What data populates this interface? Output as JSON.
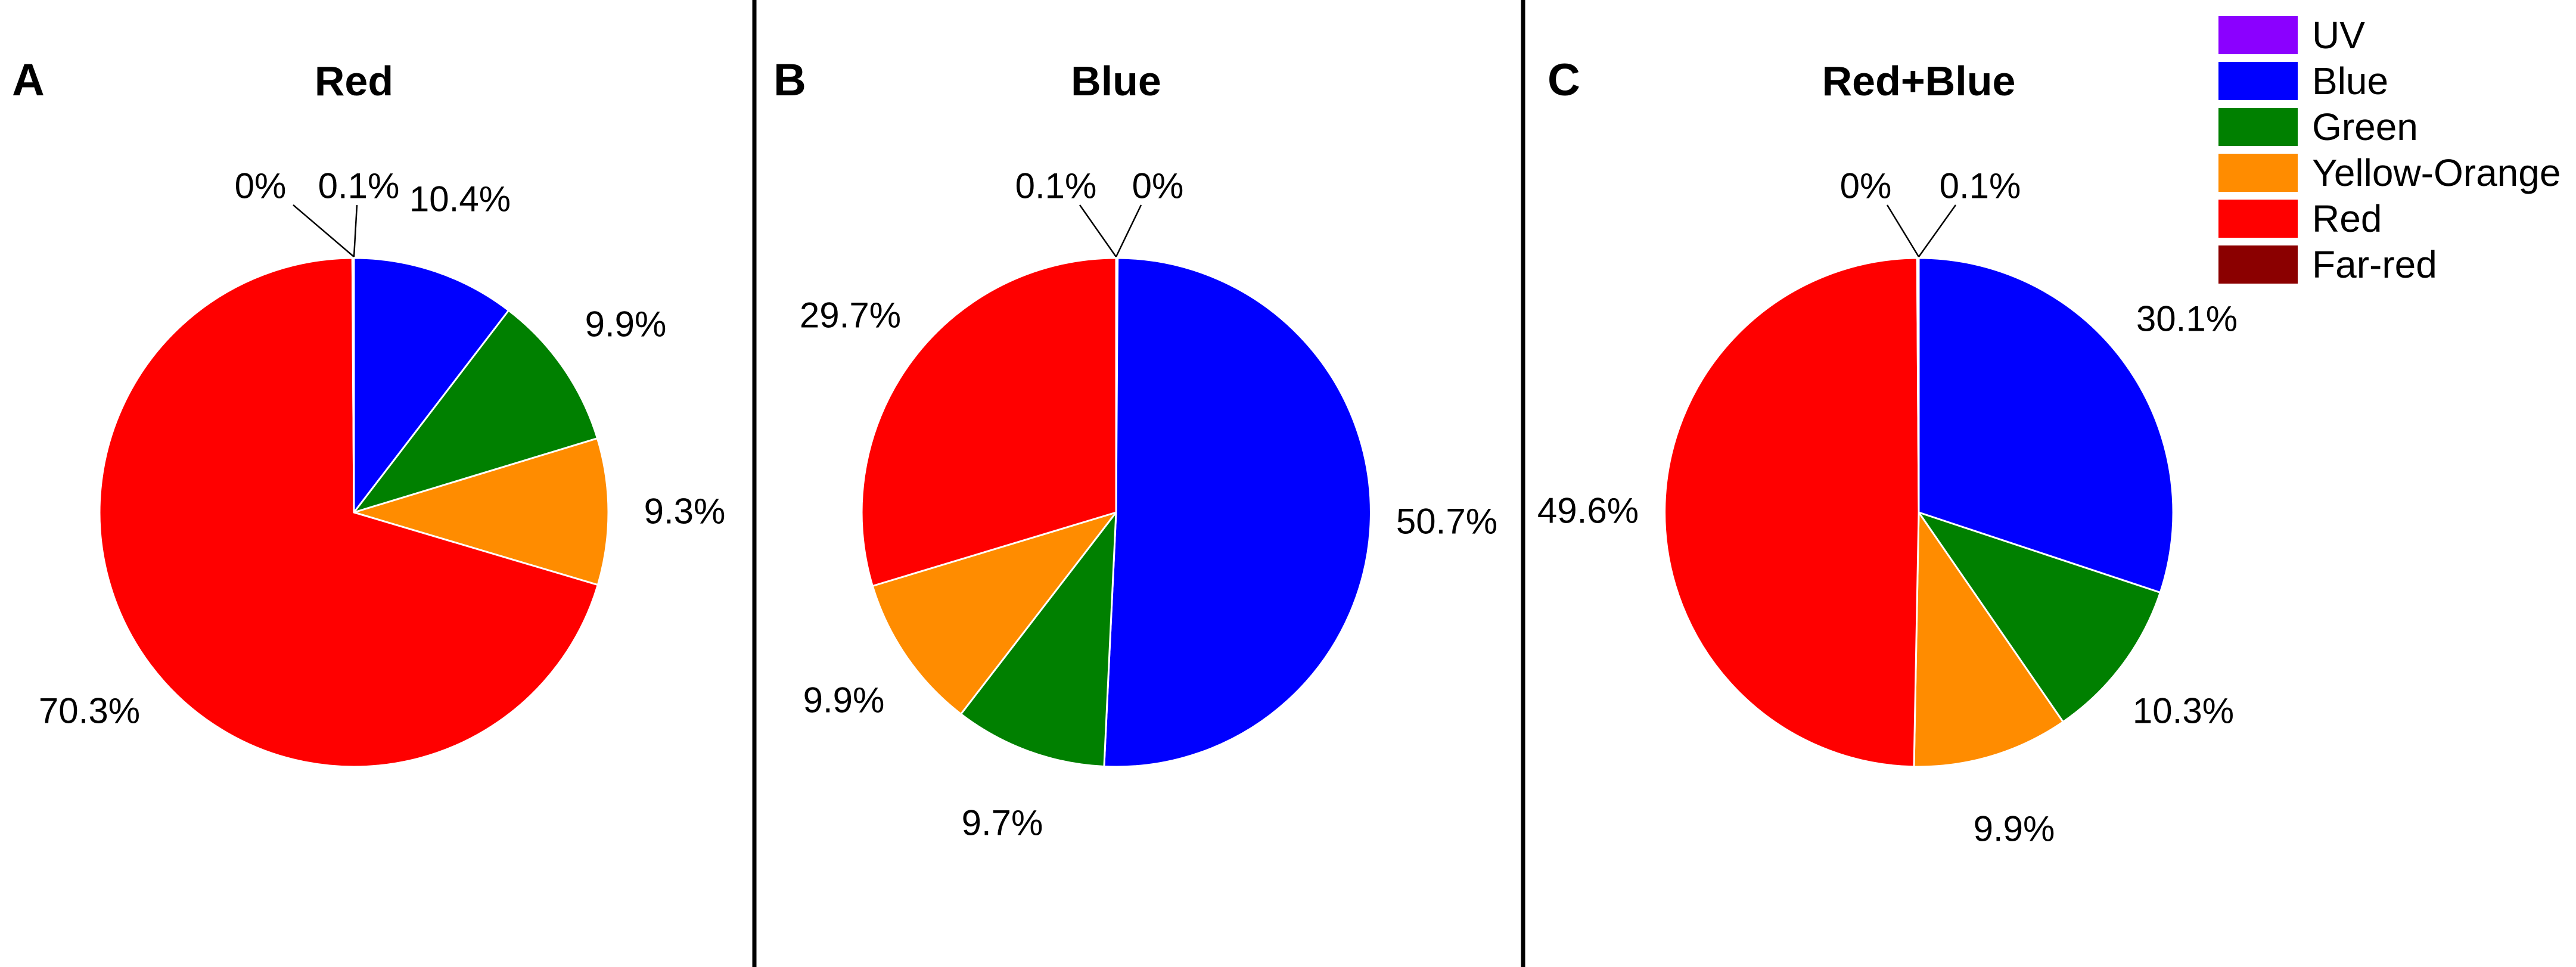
{
  "figure": {
    "background": "#FFFFFF",
    "legend": {
      "position": "top-right",
      "items": [
        {
          "label": "UV",
          "color": "#8B00FF"
        },
        {
          "label": "Blue",
          "color": "#0000FF"
        },
        {
          "label": "Green",
          "color": "#008000"
        },
        {
          "label": "Yellow-Orange",
          "color": "#FF8C00"
        },
        {
          "label": "Red",
          "color": "#FF0000"
        },
        {
          "label": "Far-red",
          "color": "#8B0000"
        }
      ]
    }
  },
  "chart_data": [
    {
      "type": "pie",
      "panel_letter": "A",
      "title": "Red",
      "start_angle": "12-o-clock",
      "direction": "clockwise",
      "categories": [
        "UV",
        "Blue",
        "Green",
        "Yellow-Orange",
        "Red",
        "Far-red"
      ],
      "values": [
        0,
        10.4,
        9.9,
        9.3,
        70.3,
        0.1
      ],
      "labels": [
        "0%",
        "10.4%",
        "9.9%",
        "9.3%",
        "70.3%",
        "0.1%"
      ],
      "colors": [
        "#8B00FF",
        "#0000FF",
        "#008000",
        "#FF8C00",
        "#FF0000",
        "#8B0000"
      ]
    },
    {
      "type": "pie",
      "panel_letter": "B",
      "title": "Blue",
      "start_angle": "12-o-clock",
      "direction": "clockwise",
      "categories": [
        "UV",
        "Blue",
        "Green",
        "Yellow-Orange",
        "Red",
        "Far-red"
      ],
      "values": [
        0.1,
        50.7,
        9.7,
        9.9,
        29.7,
        0
      ],
      "labels": [
        "0.1%",
        "50.7%",
        "9.7%",
        "9.9%",
        "29.7%",
        "0%"
      ],
      "colors": [
        "#8B00FF",
        "#0000FF",
        "#008000",
        "#FF8C00",
        "#FF0000",
        "#8B0000"
      ]
    },
    {
      "type": "pie",
      "panel_letter": "C",
      "title": "Red+Blue",
      "start_angle": "12-o-clock",
      "direction": "clockwise",
      "categories": [
        "UV",
        "Blue",
        "Green",
        "Yellow-Orange",
        "Red",
        "Far-red"
      ],
      "values": [
        0,
        30.1,
        10.3,
        9.9,
        49.6,
        0.1
      ],
      "labels": [
        "0%",
        "30.1%",
        "10.3%",
        "9.9%",
        "49.6%",
        "0.1%"
      ],
      "colors": [
        "#8B00FF",
        "#0000FF",
        "#008000",
        "#FF8C00",
        "#FF0000",
        "#8B0000"
      ]
    }
  ]
}
